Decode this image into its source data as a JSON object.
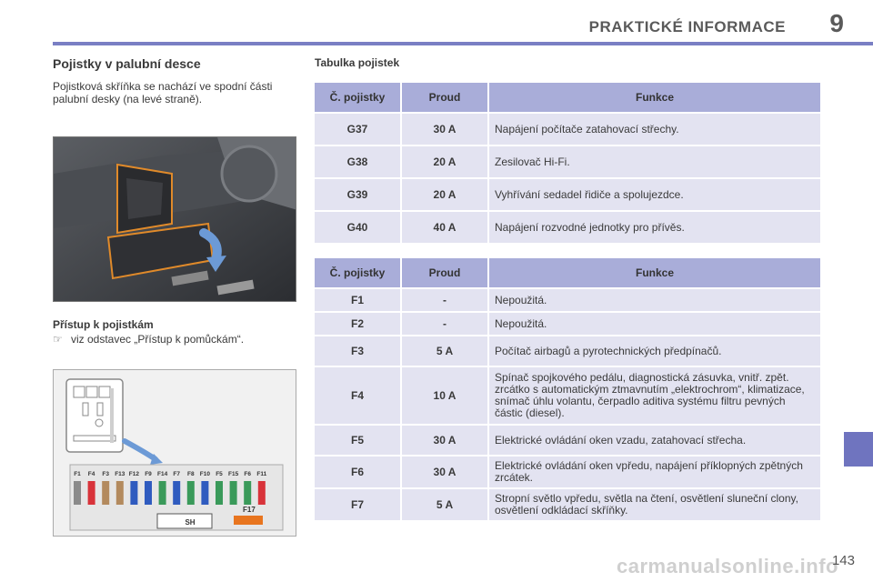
{
  "header": {
    "title": "PRAKTICKÉ INFORMACE",
    "chapter": "9"
  },
  "left": {
    "section_title": "Pojistky v palubní desce",
    "intro": "Pojistková skříňka se nachází ve spodní části palubní desky (na levé straně).",
    "access_title": "Přístup k pojistkám",
    "access_bullet": "viz odstavec „Přístup k pomůckám“.",
    "diagram": {
      "fuse_labels": [
        "F1",
        "F4",
        "F3",
        "F13",
        "F12",
        "F9",
        "F14",
        "F7",
        "F8",
        "F10",
        "F5",
        "F15",
        "F6",
        "F11"
      ],
      "fuse_colors": [
        "#8a8a8a",
        "#d8333a",
        "#b38a5e",
        "#b38a5e",
        "#2f5bbf",
        "#2f5bbf",
        "#3a9a5a",
        "#2f5bbf",
        "#3a9a5a",
        "#2f5bbf",
        "#3a9a5a",
        "#3a9a5a",
        "#3a9a5a",
        "#d8333a"
      ],
      "sh_label": "SH",
      "f17_label": "F17"
    }
  },
  "table_caption": "Tabulka pojistek",
  "table1": {
    "headers": [
      "Č. pojistky",
      "Proud",
      "Funkce"
    ],
    "rows": [
      {
        "fuse": "G37",
        "current": "30 A",
        "function": "Napájení počítače zatahovací střechy."
      },
      {
        "fuse": "G38",
        "current": "20 A",
        "function": "Zesilovač Hi-Fi."
      },
      {
        "fuse": "G39",
        "current": "20 A",
        "function": "Vyhřívání sedadel řidiče a spolujezdce."
      },
      {
        "fuse": "G40",
        "current": "40 A",
        "function": "Napájení rozvodné jednotky pro přívěs."
      }
    ]
  },
  "table2": {
    "headers": [
      "Č. pojistky",
      "Proud",
      "Funkce"
    ],
    "rows": [
      {
        "fuse": "F1",
        "current": "-",
        "function": "Nepoužitá."
      },
      {
        "fuse": "F2",
        "current": "-",
        "function": "Nepoužitá."
      },
      {
        "fuse": "F3",
        "current": "5 A",
        "function": "Počítač airbagů a pyrotechnických předpínačů."
      },
      {
        "fuse": "F4",
        "current": "10 A",
        "function": "Spínač spojkového pedálu, diagnostická zásuvka, vnitř. zpět. zrcátko s automatickým ztmavnutím „elektrochrom“, klimatizace, snímač úhlu volantu, čerpadlo aditiva systému filtru pevných částic (diesel)."
      },
      {
        "fuse": "F5",
        "current": "30 A",
        "function": "Elektrické ovládání oken vzadu, zatahovací střecha."
      },
      {
        "fuse": "F6",
        "current": "30 A",
        "function": "Elektrické ovládání oken vpředu, napájení příklopných zpětných zrcátek."
      },
      {
        "fuse": "F7",
        "current": "5 A",
        "function": "Stropní světlo vpředu, světla na čtení, osvětlení sluneční clony, osvětlení odkládací skříňky."
      }
    ]
  },
  "footer": {
    "page_number": "143",
    "watermark": "carmanualsonline.info"
  }
}
